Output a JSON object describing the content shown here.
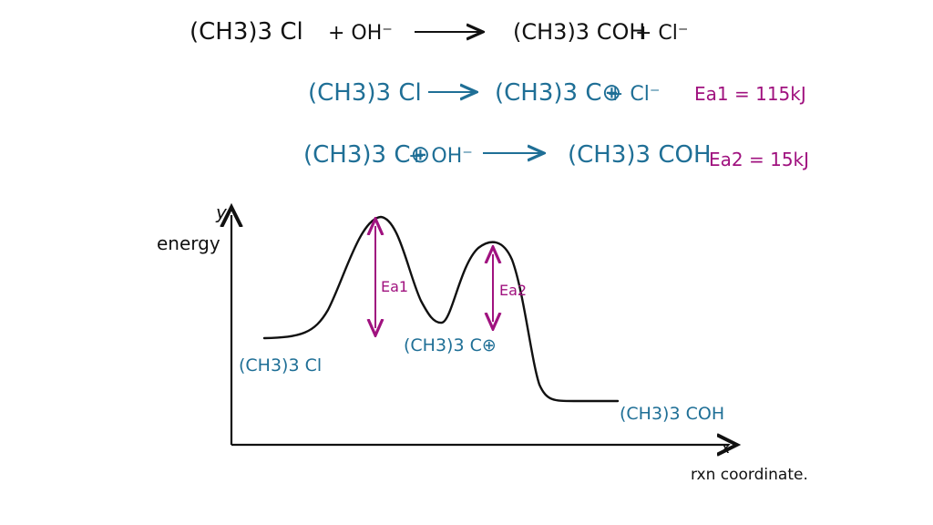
{
  "overall": {
    "reactant": "(CH3)3 Cl",
    "plus_reagent": "+ OH⁻",
    "product": "(CH3)3 COH",
    "plus_product": "+ Cl⁻"
  },
  "step1": {
    "reactant": "(CH3)3 Cl",
    "product": "(CH3)3 C⊕",
    "plus_product": "+ Cl⁻",
    "ea_label": "Ea1 = 115kJ"
  },
  "step2": {
    "reactant": "(CH3)3 C⊕",
    "plus_reagent": "+ OH⁻",
    "product": "(CH3)3 COH",
    "ea_label": "Ea2 = 15kJ"
  },
  "graph": {
    "y_axis_letter": "y",
    "x_axis_letter": "x",
    "y_label": "energy",
    "x_label": "rxn coordinate.",
    "reactant_label": "(CH3)3 Cl",
    "intermediate_label": "(CH3)3 C⊕",
    "product_label": "(CH3)3 COH",
    "ea1_label": "Ea1",
    "ea2_label": "Ea2"
  },
  "colors": {
    "black": "#111111",
    "blue": "#1f6f96",
    "purple": "#a0127f"
  }
}
